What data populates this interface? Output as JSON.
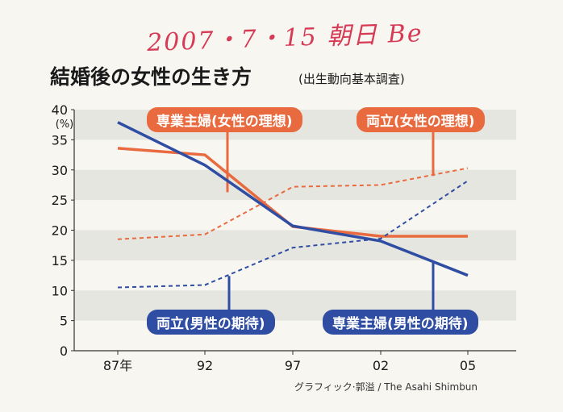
{
  "handwritten_note": "2007・7・15 朝日 Be",
  "credit": "グラフィック·郭溢 / The Asahi Shimbun",
  "colors": {
    "orange": "#e86a3e",
    "blue": "#2f4da3",
    "band": "#e6e6e0",
    "grid": "#ffffff"
  },
  "chart_data": {
    "type": "line",
    "title": "結婚後の女性の生き方",
    "subtitle": "(出生動向基本調査)",
    "ylabel": "(%)",
    "xlabel": "",
    "ylim": [
      0,
      40
    ],
    "yticks": [
      0,
      5,
      10,
      15,
      20,
      25,
      30,
      35,
      40
    ],
    "categories": [
      "87年",
      "92",
      "97",
      "02",
      "05"
    ],
    "series": [
      {
        "name": "専業主婦(女性の理想)",
        "values": [
          33.6,
          32.5,
          20.6,
          19.0,
          19.0
        ],
        "color": "#e86a3e",
        "style": "solid"
      },
      {
        "name": "両立(女性の理想)",
        "values": [
          18.5,
          19.3,
          27.2,
          27.5,
          30.3
        ],
        "color": "#e86a3e",
        "style": "dashed"
      },
      {
        "name": "両立(男性の期待)",
        "values": [
          10.5,
          10.9,
          17.1,
          18.6,
          28.2
        ],
        "color": "#2f4da3",
        "style": "dashed"
      },
      {
        "name": "専業主婦(男性の期待)",
        "values": [
          37.9,
          30.8,
          20.7,
          18.2,
          12.5
        ],
        "color": "#2f4da3",
        "style": "solid"
      }
    ],
    "grid": true
  }
}
